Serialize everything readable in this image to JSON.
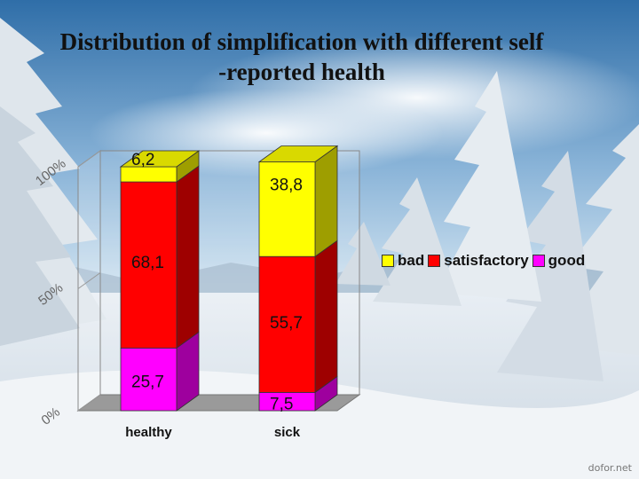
{
  "title_line1": "Distribution of simplification with different self",
  "title_line2": "-reported health",
  "watermark": "dofor.net",
  "chart_data": {
    "type": "bar",
    "stacked": true,
    "percent": true,
    "categories": [
      "healthy",
      "sick"
    ],
    "series": [
      {
        "name": "good",
        "values": [
          25.7,
          7.5
        ],
        "color": "#ff00ff",
        "labels": [
          "25,7",
          "7,5"
        ]
      },
      {
        "name": "satisfactory",
        "values": [
          68.1,
          55.7
        ],
        "color": "#ff0000",
        "labels": [
          "68,1",
          "55,7"
        ]
      },
      {
        "name": "bad",
        "values": [
          6.2,
          38.8
        ],
        "color": "#ffff00",
        "labels": [
          "6,2",
          "38,8"
        ]
      }
    ],
    "legend_order": [
      "bad",
      "satisfactory",
      "good"
    ],
    "y_ticks": [
      {
        "value": 0,
        "label": "0%"
      },
      {
        "value": 50,
        "label": "50%"
      },
      {
        "value": 100,
        "label": "100%"
      }
    ],
    "ylim": [
      0,
      100
    ],
    "legend_position": "right"
  }
}
